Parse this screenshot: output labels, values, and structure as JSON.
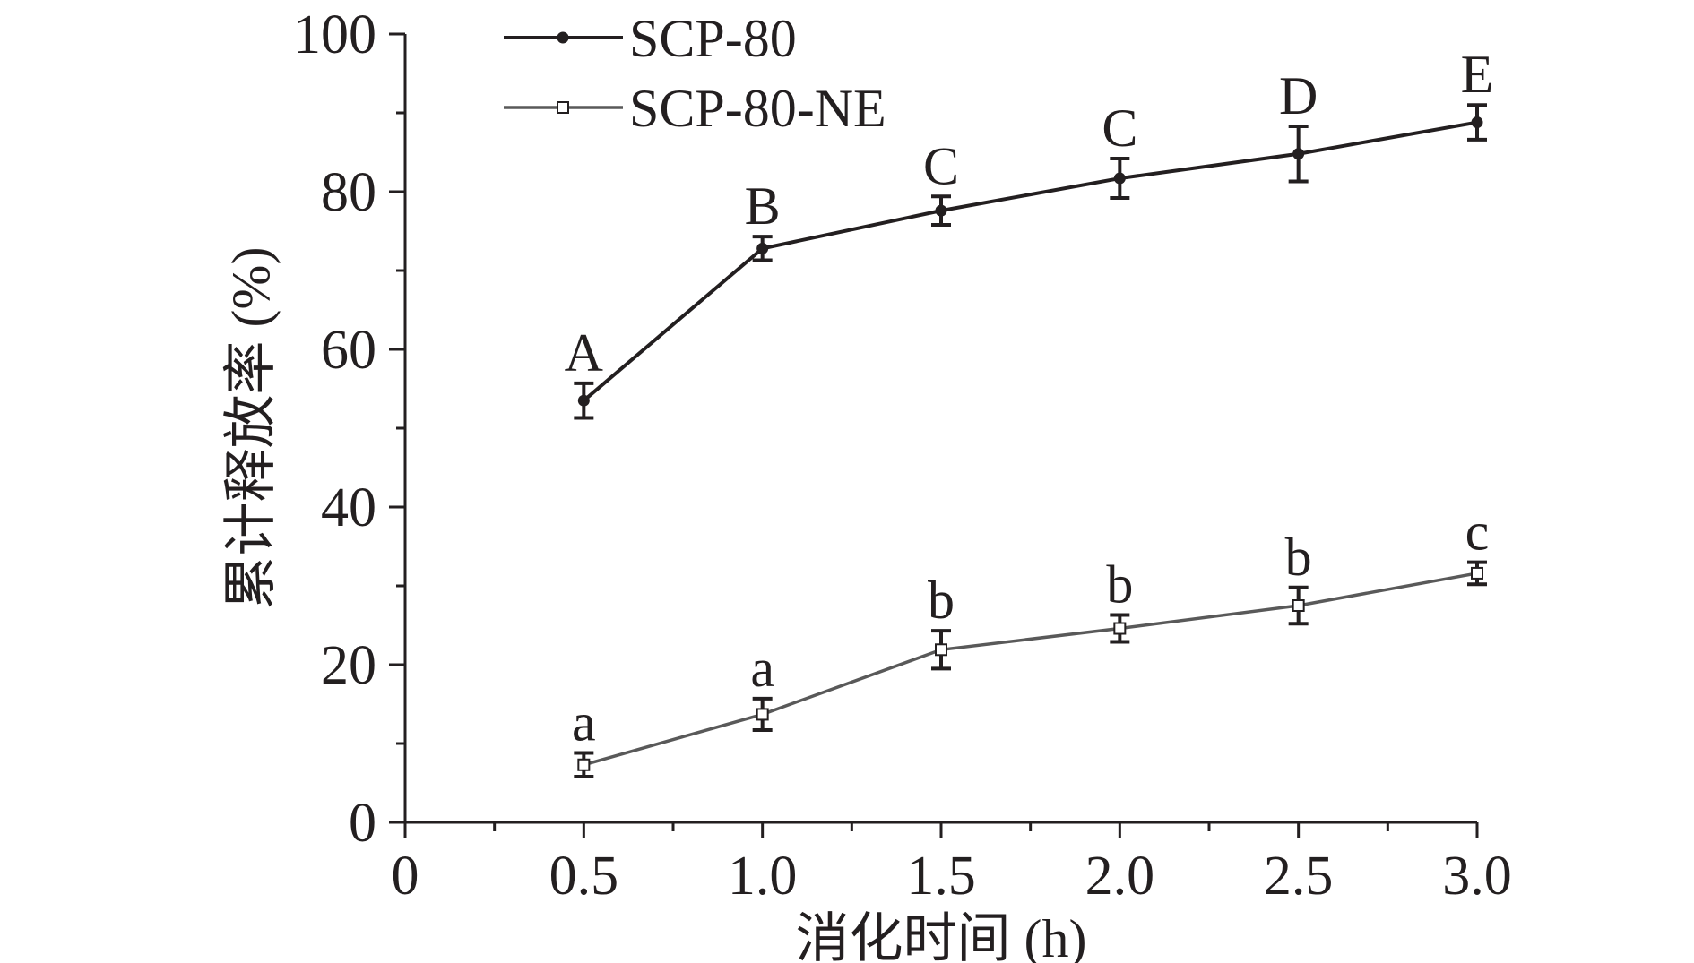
{
  "chart_data": {
    "type": "line",
    "xlabel": "消化时间 (h)",
    "ylabel": "累计释放率 (%)",
    "xlim": [
      0,
      3.0
    ],
    "ylim": [
      0,
      100
    ],
    "x_ticks": [
      "0",
      "0.5",
      "1.0",
      "1.5",
      "2.0",
      "2.5",
      "3.0"
    ],
    "x_tick_values": [
      0,
      0.5,
      1.0,
      1.5,
      2.0,
      2.5,
      3.0
    ],
    "y_ticks": [
      "0",
      "20",
      "40",
      "60",
      "80",
      "100"
    ],
    "y_tick_values": [
      0,
      20,
      40,
      60,
      80,
      100
    ],
    "grid": false,
    "legend_position": "top-left",
    "x": [
      0.5,
      1.0,
      1.5,
      2.0,
      2.5,
      3.0
    ],
    "series": [
      {
        "name": "SCP-80",
        "marker": "filled-circle",
        "color": "#231f20",
        "values": [
          53.5,
          72.8,
          77.6,
          81.7,
          84.8,
          88.8
        ],
        "errors": [
          2.2,
          1.5,
          1.8,
          2.5,
          3.5,
          2.2
        ],
        "labels": [
          "A",
          "B",
          "C",
          "C",
          "D",
          "E"
        ]
      },
      {
        "name": "SCP-80-NE",
        "marker": "open-square",
        "color": "#595959",
        "values": [
          7.3,
          13.7,
          21.9,
          24.6,
          27.5,
          31.6
        ],
        "errors": [
          1.5,
          2.0,
          2.4,
          1.7,
          2.3,
          1.4
        ],
        "labels": [
          "a",
          "a",
          "b",
          "b",
          "b",
          "c"
        ]
      }
    ]
  }
}
